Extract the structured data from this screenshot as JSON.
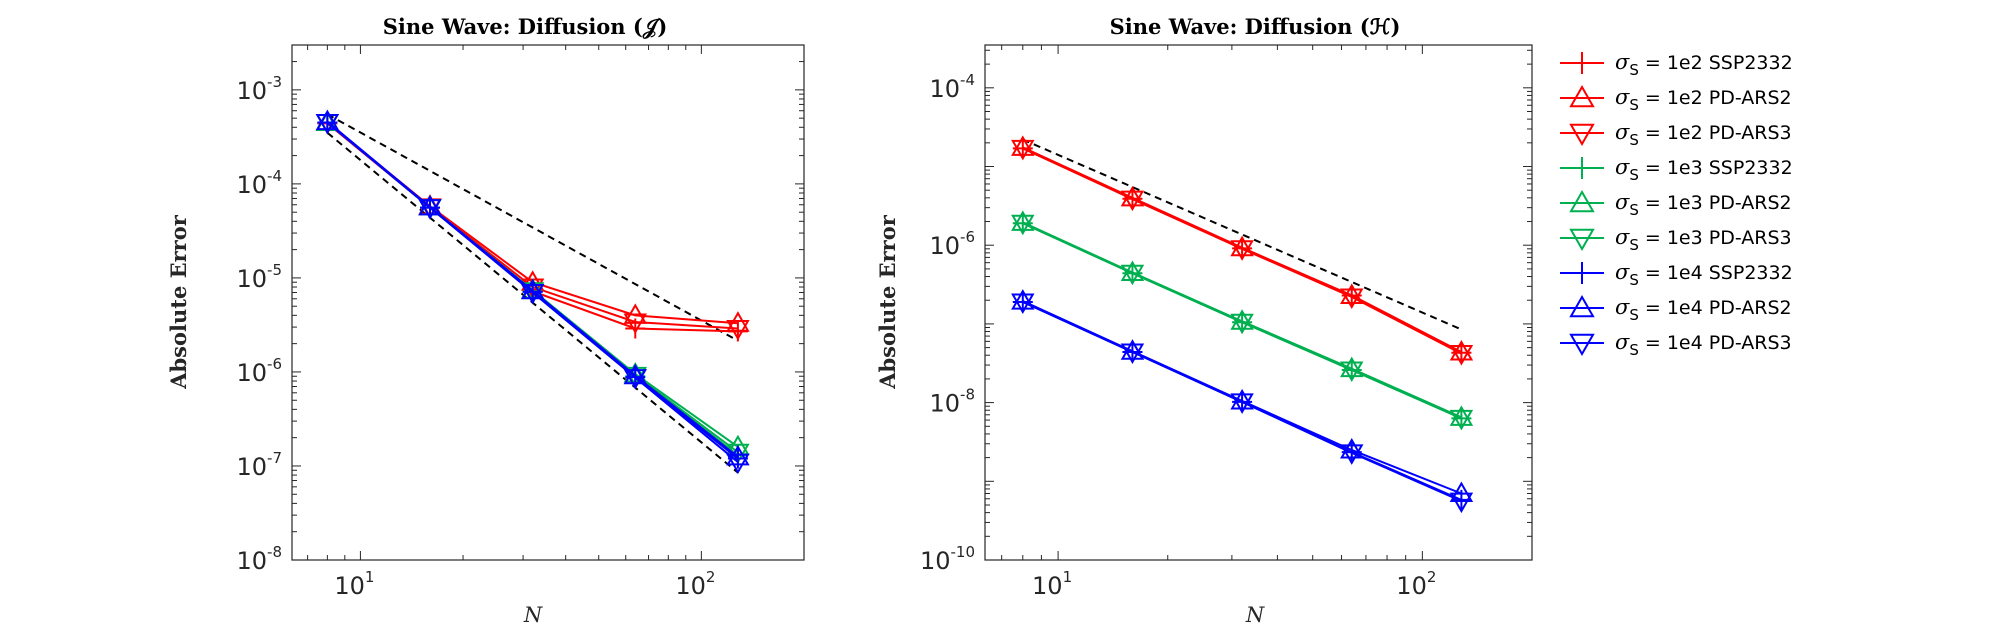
{
  "chart_data": [
    {
      "type": "line",
      "title": "Sine Wave: Diffusion (𝒥)",
      "xlabel": "N",
      "ylabel": "Absolute Error",
      "xscale": "log",
      "yscale": "log",
      "xlim": [
        6.3,
        200
      ],
      "ylim": [
        1e-08,
        0.003
      ],
      "xticks": [
        {
          "value": 10,
          "base": "10",
          "exp": "1"
        },
        {
          "value": 100,
          "base": "10",
          "exp": "2"
        }
      ],
      "yticks": [
        {
          "value": 0.001,
          "base": "10",
          "exp": "-3"
        },
        {
          "value": 0.0001,
          "base": "10",
          "exp": "-4"
        },
        {
          "value": 1e-05,
          "base": "10",
          "exp": "-5"
        },
        {
          "value": 1e-06,
          "base": "10",
          "exp": "-6"
        },
        {
          "value": 1e-07,
          "base": "10",
          "exp": "-7"
        },
        {
          "value": 1e-08,
          "base": "10",
          "exp": "-8"
        }
      ],
      "grid": false,
      "x": [
        8,
        16,
        32,
        64,
        128
      ],
      "series": [
        {
          "name": "σS = 1e2  SSP2332",
          "color": "#ff0000",
          "marker": "plus",
          "values": [
            0.00044,
            5.6e-05,
            7.2e-06,
            2.9e-06,
            2.7e-06
          ]
        },
        {
          "name": "σS = 1e2  PD-ARS2",
          "color": "#ff0000",
          "marker": "triangle-up",
          "values": [
            0.00045,
            5.8e-05,
            9e-06,
            4e-06,
            3.3e-06
          ]
        },
        {
          "name": "σS = 1e2  PD-ARS3",
          "color": "#ff0000",
          "marker": "triangle-down",
          "values": [
            0.00045,
            5.7e-05,
            8e-06,
            3.4e-06,
            2.9e-06
          ]
        },
        {
          "name": "σS = 1e3  SSP2332",
          "color": "#00b050",
          "marker": "plus",
          "values": [
            0.00045,
            5.6e-05,
            7.2e-06,
            9e-07,
            1.3e-07
          ]
        },
        {
          "name": "σS = 1e3  PD-ARS2",
          "color": "#00b050",
          "marker": "triangle-up",
          "values": [
            0.00045,
            5.7e-05,
            7.4e-06,
            9.5e-07,
            1.6e-07
          ]
        },
        {
          "name": "σS = 1e3  PD-ARS3",
          "color": "#00b050",
          "marker": "triangle-down",
          "values": [
            0.00045,
            5.6e-05,
            7.3e-06,
            9.2e-07,
            1.4e-07
          ]
        },
        {
          "name": "σS = 1e4  SSP2332",
          "color": "#0000ff",
          "marker": "plus",
          "values": [
            0.00045,
            5.6e-05,
            7.1e-06,
            8.8e-07,
            1.2e-07
          ]
        },
        {
          "name": "σS = 1e4  PD-ARS2",
          "color": "#0000ff",
          "marker": "triangle-up",
          "values": [
            0.00046,
            5.7e-05,
            7.3e-06,
            9.1e-07,
            1.25e-07
          ]
        },
        {
          "name": "σS = 1e4  PD-ARS3",
          "color": "#0000ff",
          "marker": "triangle-down",
          "values": [
            0.00045,
            5.6e-05,
            7e-06,
            8.7e-07,
            1.1e-07
          ]
        }
      ],
      "reference_lines": [
        {
          "color": "#000000",
          "style": "dashed",
          "x": [
            8,
            128
          ],
          "values": [
            0.00055,
            2.15e-06
          ]
        },
        {
          "color": "#000000",
          "style": "dashed",
          "x": [
            8,
            128
          ],
          "values": [
            0.00035,
            8.5e-08
          ]
        }
      ]
    },
    {
      "type": "line",
      "title": "Sine Wave: Diffusion (ℋ)",
      "xlabel": "N",
      "ylabel": "Absolute Error",
      "xscale": "log",
      "yscale": "log",
      "xlim": [
        6.3,
        200
      ],
      "ylim": [
        1e-10,
        0.00035
      ],
      "xticks": [
        {
          "value": 10,
          "base": "10",
          "exp": "1"
        },
        {
          "value": 100,
          "base": "10",
          "exp": "2"
        }
      ],
      "yticks": [
        {
          "value": 0.0001,
          "base": "10",
          "exp": "-4"
        },
        {
          "value": 1e-06,
          "base": "10",
          "exp": "-6"
        },
        {
          "value": 1e-08,
          "base": "10",
          "exp": "-8"
        },
        {
          "value": 1e-10,
          "base": "10",
          "exp": "-10"
        }
      ],
      "grid": false,
      "x": [
        8,
        16,
        32,
        64,
        128
      ],
      "series": [
        {
          "name": "σS = 1e2  SSP2332",
          "color": "#ff0000",
          "marker": "plus",
          "values": [
            1.7e-05,
            3.9e-06,
            9.1e-07,
            2.3e-07,
            4.3e-08
          ]
        },
        {
          "name": "σS = 1e2  PD-ARS2",
          "color": "#ff0000",
          "marker": "triangle-up",
          "values": [
            1.75e-05,
            4e-06,
            9.3e-07,
            2.3e-07,
            4.4e-08
          ]
        },
        {
          "name": "σS = 1e2  PD-ARS3",
          "color": "#ff0000",
          "marker": "triangle-down",
          "values": [
            1.7e-05,
            3.85e-06,
            9e-07,
            2.2e-07,
            4.2e-08
          ]
        },
        {
          "name": "σS = 1e3  SSP2332",
          "color": "#00b050",
          "marker": "plus",
          "values": [
            1.9e-06,
            4.4e-07,
            1.05e-07,
            2.6e-08,
            6.3e-09
          ]
        },
        {
          "name": "σS = 1e3  PD-ARS2",
          "color": "#00b050",
          "marker": "triangle-up",
          "values": [
            1.95e-06,
            4.5e-07,
            1.08e-07,
            2.7e-08,
            6.5e-09
          ]
        },
        {
          "name": "σS = 1e3  PD-ARS3",
          "color": "#00b050",
          "marker": "triangle-down",
          "values": [
            1.9e-06,
            4.4e-07,
            1.05e-07,
            2.6e-08,
            6.3e-09
          ]
        },
        {
          "name": "σS = 1e4  SSP2332",
          "color": "#0000ff",
          "marker": "plus",
          "values": [
            1.9e-07,
            4.4e-08,
            1.02e-08,
            2.35e-09,
            5.8e-10
          ]
        },
        {
          "name": "σS = 1e4  PD-ARS2",
          "color": "#0000ff",
          "marker": "triangle-up",
          "values": [
            1.95e-07,
            4.5e-08,
            1.05e-08,
            2.5e-09,
            7e-10
          ]
        },
        {
          "name": "σS = 1e4  PD-ARS3",
          "color": "#0000ff",
          "marker": "triangle-down",
          "values": [
            1.9e-07,
            4.4e-08,
            1.02e-08,
            2.3e-09,
            5.6e-10
          ]
        }
      ],
      "reference_lines": [
        {
          "color": "#000000",
          "style": "dashed",
          "x": [
            8,
            128
          ],
          "values": [
            2.2e-05,
            8.5e-08
          ]
        }
      ]
    }
  ],
  "legend": {
    "placement": "right",
    "entries": [
      {
        "sigma": "σ",
        "sub": "S",
        "text": "= 1e2  SSP2332",
        "color": "#ff0000",
        "marker": "plus"
      },
      {
        "sigma": "σ",
        "sub": "S",
        "text": "= 1e2  PD-ARS2",
        "color": "#ff0000",
        "marker": "triangle-up"
      },
      {
        "sigma": "σ",
        "sub": "S",
        "text": "= 1e2  PD-ARS3",
        "color": "#ff0000",
        "marker": "triangle-down"
      },
      {
        "sigma": "σ",
        "sub": "S",
        "text": "= 1e3  SSP2332",
        "color": "#00b050",
        "marker": "plus"
      },
      {
        "sigma": "σ",
        "sub": "S",
        "text": "= 1e3  PD-ARS2",
        "color": "#00b050",
        "marker": "triangle-up"
      },
      {
        "sigma": "σ",
        "sub": "S",
        "text": "= 1e3  PD-ARS3",
        "color": "#00b050",
        "marker": "triangle-down"
      },
      {
        "sigma": "σ",
        "sub": "S",
        "text": "= 1e4  SSP2332",
        "color": "#0000ff",
        "marker": "plus"
      },
      {
        "sigma": "σ",
        "sub": "S",
        "text": "= 1e4  PD-ARS2",
        "color": "#0000ff",
        "marker": "triangle-up"
      },
      {
        "sigma": "σ",
        "sub": "S",
        "text": "= 1e4  PD-ARS3",
        "color": "#0000ff",
        "marker": "triangle-down"
      }
    ]
  }
}
